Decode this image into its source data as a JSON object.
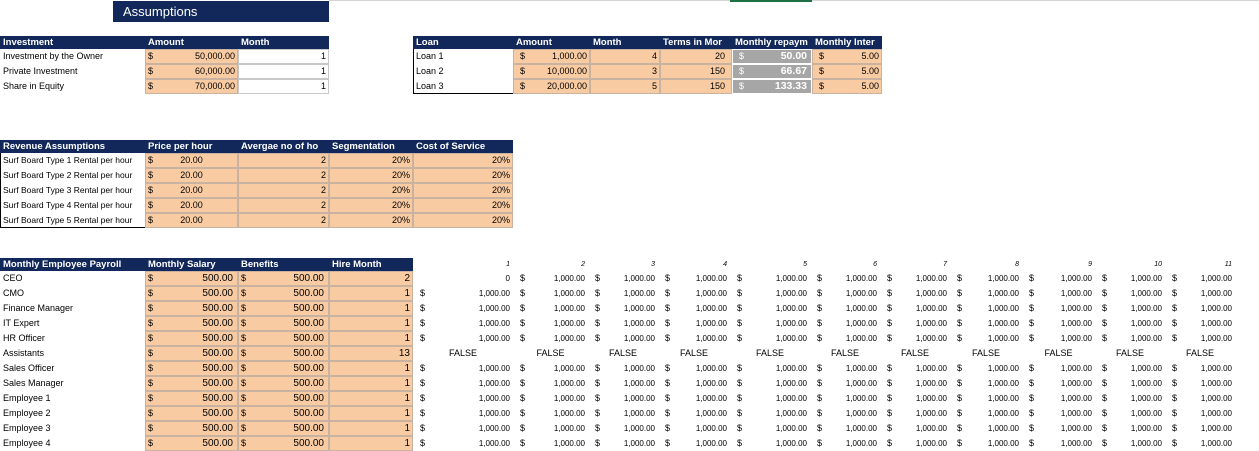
{
  "title": "Assumptions",
  "currency_symbol": "$",
  "investment": {
    "headers": [
      "Investment",
      "Amount",
      "Month"
    ],
    "rows": [
      [
        "Investment by the Owner",
        "50,000.00",
        1
      ],
      [
        "Private Investment",
        "60,000.00",
        1
      ],
      [
        "Share in Equity",
        "70,000.00",
        1
      ]
    ]
  },
  "loan": {
    "headers": [
      "Loan",
      "Amount",
      "Month",
      "Terms in Mor",
      "Monthly repaym",
      "Monthly Inter"
    ],
    "rows": [
      [
        "Loan 1",
        "1,000.00",
        4,
        20,
        "50.00",
        "5.00"
      ],
      [
        "Loan 2",
        "10,000.00",
        3,
        150,
        "66.67",
        "5.00"
      ],
      [
        "Loan 3",
        "20,000.00",
        5,
        150,
        "133.33",
        "5.00"
      ]
    ]
  },
  "revenue": {
    "headers": [
      "Revenue Assumptions",
      "Price per hour",
      "Avergae no of ho",
      "Segmentation",
      "Cost of Service"
    ],
    "rows": [
      [
        "Surf Board Type 1 Rental per hour",
        "20.00",
        2,
        "20%",
        "20%"
      ],
      [
        "Surf Board Type 2 Rental per hour",
        "20.00",
        2,
        "20%",
        "20%"
      ],
      [
        "Surf Board Type 3 Rental per hour",
        "20.00",
        2,
        "20%",
        "20%"
      ],
      [
        "Surf Board Type 4 Rental per hour",
        "20.00",
        2,
        "20%",
        "20%"
      ],
      [
        "Surf Board Type 5 Rental per hour",
        "20.00",
        2,
        "20%",
        "20%"
      ]
    ]
  },
  "payroll": {
    "headers": [
      "Monthly Employee Payroll",
      "Monthly Salary",
      "Benefits",
      "Hire Month"
    ],
    "months": [
      1,
      2,
      3,
      4,
      5,
      6,
      7,
      8,
      9,
      10,
      11
    ],
    "rows": [
      {
        "name": "CEO",
        "salary": "500.00",
        "benefits": "500.00",
        "hire_month": 2,
        "monthly": [
          "0",
          "1,000.00",
          "1,000.00",
          "1,000.00",
          "1,000.00",
          "1,000.00",
          "1,000.00",
          "1,000.00",
          "1,000.00",
          "1,000.00",
          "1,000.00"
        ]
      },
      {
        "name": "CMO",
        "salary": "500.00",
        "benefits": "500.00",
        "hire_month": 1,
        "monthly": [
          "1,000.00",
          "1,000.00",
          "1,000.00",
          "1,000.00",
          "1,000.00",
          "1,000.00",
          "1,000.00",
          "1,000.00",
          "1,000.00",
          "1,000.00",
          "1,000.00"
        ]
      },
      {
        "name": "Finance Manager",
        "salary": "500.00",
        "benefits": "500.00",
        "hire_month": 1,
        "monthly": [
          "1,000.00",
          "1,000.00",
          "1,000.00",
          "1,000.00",
          "1,000.00",
          "1,000.00",
          "1,000.00",
          "1,000.00",
          "1,000.00",
          "1,000.00",
          "1,000.00"
        ]
      },
      {
        "name": "IT Expert",
        "salary": "500.00",
        "benefits": "500.00",
        "hire_month": 1,
        "monthly": [
          "1,000.00",
          "1,000.00",
          "1,000.00",
          "1,000.00",
          "1,000.00",
          "1,000.00",
          "1,000.00",
          "1,000.00",
          "1,000.00",
          "1,000.00",
          "1,000.00"
        ]
      },
      {
        "name": "HR Officer",
        "salary": "500.00",
        "benefits": "500.00",
        "hire_month": 1,
        "monthly": [
          "1,000.00",
          "1,000.00",
          "1,000.00",
          "1,000.00",
          "1,000.00",
          "1,000.00",
          "1,000.00",
          "1,000.00",
          "1,000.00",
          "1,000.00",
          "1,000.00"
        ]
      },
      {
        "name": "Assistants",
        "salary": "500.00",
        "benefits": "500.00",
        "hire_month": 13,
        "monthly": [
          "FALSE",
          "FALSE",
          "FALSE",
          "FALSE",
          "FALSE",
          "FALSE",
          "FALSE",
          "FALSE",
          "FALSE",
          "FALSE",
          "FALSE"
        ]
      },
      {
        "name": "Sales Officer",
        "salary": "500.00",
        "benefits": "500.00",
        "hire_month": 1,
        "monthly": [
          "1,000.00",
          "1,000.00",
          "1,000.00",
          "1,000.00",
          "1,000.00",
          "1,000.00",
          "1,000.00",
          "1,000.00",
          "1,000.00",
          "1,000.00",
          "1,000.00"
        ]
      },
      {
        "name": "Sales Manager",
        "salary": "500.00",
        "benefits": "500.00",
        "hire_month": 1,
        "monthly": [
          "1,000.00",
          "1,000.00",
          "1,000.00",
          "1,000.00",
          "1,000.00",
          "1,000.00",
          "1,000.00",
          "1,000.00",
          "1,000.00",
          "1,000.00",
          "1,000.00"
        ]
      },
      {
        "name": "Employee 1",
        "salary": "500.00",
        "benefits": "500.00",
        "hire_month": 1,
        "monthly": [
          "1,000.00",
          "1,000.00",
          "1,000.00",
          "1,000.00",
          "1,000.00",
          "1,000.00",
          "1,000.00",
          "1,000.00",
          "1,000.00",
          "1,000.00",
          "1,000.00"
        ]
      },
      {
        "name": "Employee 2",
        "salary": "500.00",
        "benefits": "500.00",
        "hire_month": 1,
        "monthly": [
          "1,000.00",
          "1,000.00",
          "1,000.00",
          "1,000.00",
          "1,000.00",
          "1,000.00",
          "1,000.00",
          "1,000.00",
          "1,000.00",
          "1,000.00",
          "1,000.00"
        ]
      },
      {
        "name": "Employee 3",
        "salary": "500.00",
        "benefits": "500.00",
        "hire_month": 1,
        "monthly": [
          "1,000.00",
          "1,000.00",
          "1,000.00",
          "1,000.00",
          "1,000.00",
          "1,000.00",
          "1,000.00",
          "1,000.00",
          "1,000.00",
          "1,000.00",
          "1,000.00"
        ]
      },
      {
        "name": "Employee 4",
        "salary": "500.00",
        "benefits": "500.00",
        "hire_month": 1,
        "monthly": [
          "1,000.00",
          "1,000.00",
          "1,000.00",
          "1,000.00",
          "1,000.00",
          "1,000.00",
          "1,000.00",
          "1,000.00",
          "1,000.00",
          "1,000.00",
          "1,000.00"
        ]
      }
    ]
  }
}
